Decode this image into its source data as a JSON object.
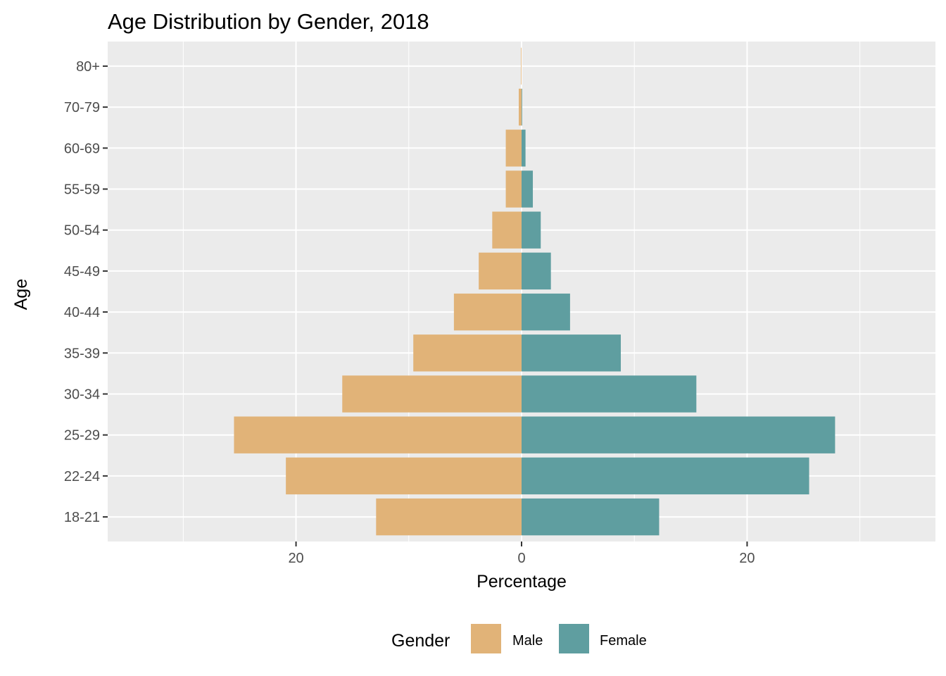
{
  "chart_data": {
    "type": "bar",
    "orientation": "horizontal",
    "title": "Age Distribution by Gender, 2018",
    "xlabel": "Percentage",
    "ylabel": "Age",
    "categories": [
      "18-21",
      "22-24",
      "25-29",
      "30-34",
      "35-39",
      "40-44",
      "45-49",
      "50-54",
      "55-59",
      "60-69",
      "70-79",
      "80+"
    ],
    "series": [
      {
        "name": "Male",
        "color": "#E1B378",
        "values": [
          -12.9,
          -20.9,
          -25.5,
          -15.9,
          -9.6,
          -6.0,
          -3.8,
          -2.6,
          -1.4,
          -1.4,
          -0.25,
          -0.05
        ]
      },
      {
        "name": "Female",
        "color": "#5F9EA0",
        "values": [
          12.2,
          25.5,
          27.8,
          15.5,
          8.8,
          4.3,
          2.6,
          1.7,
          1.0,
          0.35,
          0.05,
          0.0
        ]
      }
    ],
    "xlim": [
      -36.7,
      36.7
    ],
    "x_ticks": [
      -20,
      0,
      20
    ],
    "x_tick_labels": [
      "20",
      "0",
      "20"
    ],
    "panel_background": "#EBEBEB",
    "grid": true,
    "legend": {
      "title": "Gender",
      "position": "bottom"
    }
  }
}
